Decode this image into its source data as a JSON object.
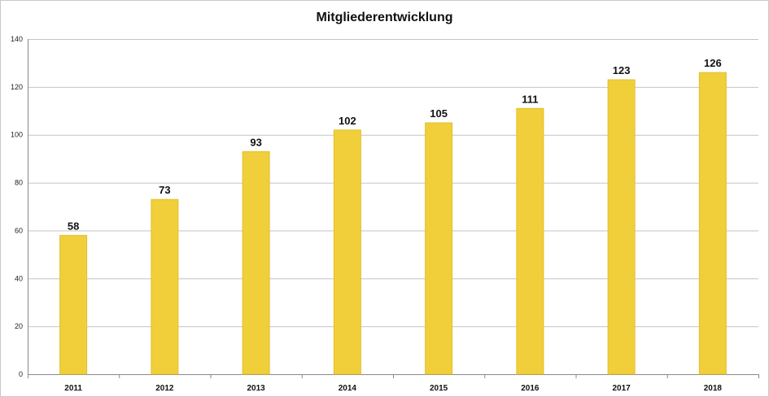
{
  "chart_data": {
    "type": "bar",
    "title": "Mitgliederentwicklung",
    "categories": [
      "2011",
      "2012",
      "2013",
      "2014",
      "2015",
      "2016",
      "2017",
      "2018"
    ],
    "values": [
      58,
      73,
      93,
      102,
      105,
      111,
      123,
      126
    ],
    "ylim": [
      0,
      140
    ],
    "yticks": [
      0,
      20,
      40,
      60,
      80,
      100,
      120,
      140
    ],
    "grid": true,
    "legend": "none",
    "bar_color": "#f0cf3a"
  }
}
